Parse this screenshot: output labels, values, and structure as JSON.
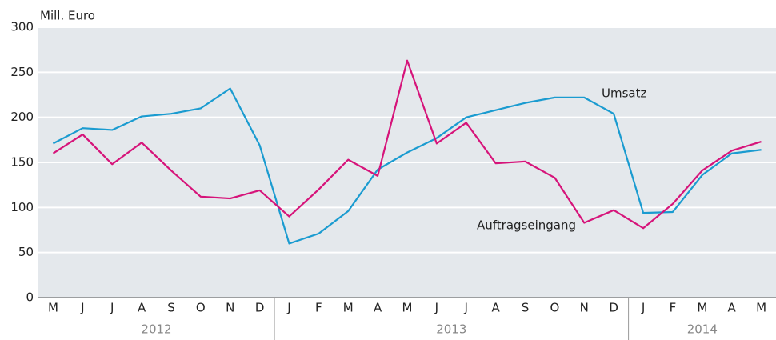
{
  "chart_data": {
    "type": "line",
    "y_label": "Mill. Euro",
    "categories": [
      "M",
      "J",
      "J",
      "A",
      "S",
      "O",
      "N",
      "D",
      "J",
      "F",
      "M",
      "A",
      "M",
      "J",
      "J",
      "A",
      "S",
      "O",
      "N",
      "D",
      "J",
      "F",
      "M",
      "A",
      "M"
    ],
    "years": [
      "2012",
      "2013",
      "2014"
    ],
    "series": [
      {
        "name": "Umsatz",
        "color": "#1a9bd0",
        "values": [
          171,
          188,
          186,
          201,
          204,
          210,
          232,
          169,
          60,
          71,
          96,
          142,
          161,
          177,
          200,
          208,
          216,
          222,
          222,
          204,
          94,
          95,
          136,
          160,
          164
        ]
      },
      {
        "name": "Auftragseingang",
        "color": "#d6147a",
        "values": [
          160,
          181,
          148,
          172,
          141,
          112,
          110,
          119,
          90,
          120,
          153,
          135,
          263,
          171,
          194,
          149,
          151,
          133,
          83,
          97,
          77,
          104,
          141,
          163,
          173
        ]
      }
    ],
    "ylim": [
      0,
      300
    ],
    "yticks": [
      0,
      50,
      100,
      150,
      200,
      250,
      300
    ],
    "grid": true
  }
}
